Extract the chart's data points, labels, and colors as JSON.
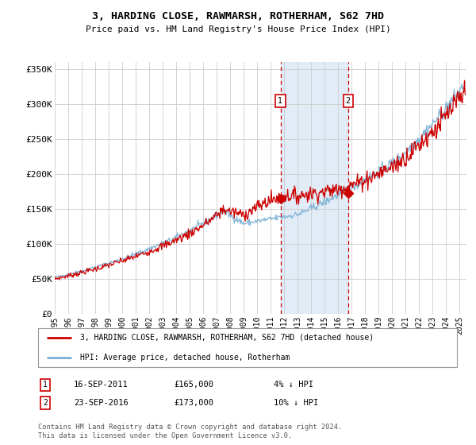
{
  "title": "3, HARDING CLOSE, RAWMARSH, ROTHERHAM, S62 7HD",
  "subtitle": "Price paid vs. HM Land Registry's House Price Index (HPI)",
  "ylabel_ticks": [
    "£0",
    "£50K",
    "£100K",
    "£150K",
    "£200K",
    "£250K",
    "£300K",
    "£350K"
  ],
  "ylim": [
    0,
    360000
  ],
  "xlim_start": 1995.0,
  "xlim_end": 2025.5,
  "transaction1": {
    "date_num": 2011.72,
    "price": 165000,
    "label": "1"
  },
  "transaction2": {
    "date_num": 2016.73,
    "price": 173000,
    "label": "2"
  },
  "shade_start": 2011.72,
  "shade_end": 2016.73,
  "line_color_red": "#cc0000",
  "line_color_blue": "#7aafd4",
  "marker_box_color": "#cc0000",
  "dashed_line_color": "#cc0000",
  "shade_color": "#dae8f5",
  "legend1_label": "3, HARDING CLOSE, RAWMARSH, ROTHERHAM, S62 7HD (detached house)",
  "legend2_label": "HPI: Average price, detached house, Rotherham",
  "ann1_label": "1",
  "ann1_date": "16-SEP-2011",
  "ann1_price": "£165,000",
  "ann1_pct": "4% ↓ HPI",
  "ann2_label": "2",
  "ann2_date": "23-SEP-2016",
  "ann2_price": "£173,000",
  "ann2_pct": "10% ↓ HPI",
  "footer": "Contains HM Land Registry data © Crown copyright and database right 2024.\nThis data is licensed under the Open Government Licence v3.0.",
  "bg_color": "#ffffff",
  "grid_color": "#cccccc",
  "xtick_years": [
    1995,
    1996,
    1997,
    1998,
    1999,
    2000,
    2001,
    2002,
    2003,
    2004,
    2005,
    2006,
    2007,
    2008,
    2009,
    2010,
    2011,
    2012,
    2013,
    2014,
    2015,
    2016,
    2017,
    2018,
    2019,
    2020,
    2021,
    2022,
    2023,
    2024,
    2025
  ]
}
